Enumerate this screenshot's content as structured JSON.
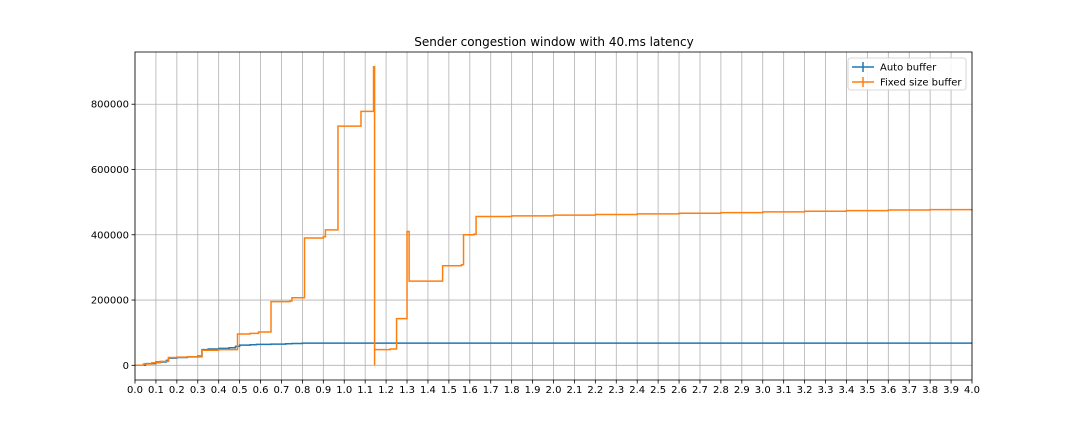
{
  "chart_data": {
    "type": "line",
    "title": "Sender congestion window with 40.ms latency",
    "xlabel": "",
    "ylabel": "",
    "xlim": [
      0.0,
      4.0
    ],
    "ylim": [
      -45000,
      960000
    ],
    "x_ticks": [
      0.0,
      0.1,
      0.2,
      0.3,
      0.4,
      0.5,
      0.6,
      0.7,
      0.8,
      0.9,
      1.0,
      1.1,
      1.2,
      1.3,
      1.4,
      1.5,
      1.6,
      1.7,
      1.8,
      1.9,
      2.0,
      2.1,
      2.2,
      2.3,
      2.4,
      2.5,
      2.6,
      2.7,
      2.8,
      2.9,
      3.0,
      3.1,
      3.2,
      3.3,
      3.4,
      3.5,
      3.6,
      3.7,
      3.8,
      3.9,
      4.0
    ],
    "x_tick_labels": [
      "0.0",
      "0.1",
      "0.2",
      "0.3",
      "0.4",
      "0.5",
      "0.6",
      "0.7",
      "0.8",
      "0.9",
      "1.0",
      "1.1",
      "1.2",
      "1.3",
      "1.4",
      "1.5",
      "1.6",
      "1.7",
      "1.8",
      "1.9",
      "2.0",
      "2.1",
      "2.2",
      "2.3",
      "2.4",
      "2.5",
      "2.6",
      "2.7",
      "2.8",
      "2.9",
      "3.0",
      "3.1",
      "3.2",
      "3.3",
      "3.4",
      "3.5",
      "3.6",
      "3.7",
      "3.8",
      "3.9",
      "4.0"
    ],
    "y_ticks": [
      0,
      200000,
      400000,
      600000,
      800000
    ],
    "y_tick_labels": [
      "0",
      "200000",
      "400000",
      "600000",
      "800000"
    ],
    "grid": true,
    "legend_position": "top-right",
    "series": [
      {
        "name": "Auto buffer",
        "color": "#1f77b4",
        "x": [
          0.0,
          0.05,
          0.1,
          0.15,
          0.16,
          0.2,
          0.25,
          0.3,
          0.32,
          0.35,
          0.4,
          0.45,
          0.48,
          0.5,
          0.55,
          0.58,
          0.65,
          0.72,
          0.75,
          0.8,
          1.0,
          1.5,
          2.0,
          2.5,
          3.0,
          3.5,
          4.0
        ],
        "y": [
          0,
          5000,
          10000,
          15000,
          22000,
          24000,
          26000,
          28000,
          48000,
          50000,
          52000,
          54000,
          58000,
          62000,
          63000,
          64000,
          65000,
          66000,
          67000,
          68000,
          68000,
          68000,
          68000,
          68000,
          68000,
          68000,
          68000
        ]
      },
      {
        "name": "Fixed size buffer",
        "color": "#ff7f0e",
        "x": [
          0.0,
          0.04,
          0.08,
          0.12,
          0.16,
          0.16,
          0.2,
          0.25,
          0.32,
          0.32,
          0.4,
          0.49,
          0.49,
          0.55,
          0.59,
          0.65,
          0.65,
          0.74,
          0.75,
          0.81,
          0.81,
          0.9,
          0.91,
          0.97,
          0.97,
          1.03,
          1.07,
          1.08,
          1.14,
          1.14,
          1.145,
          1.145,
          1.22,
          1.25,
          1.25,
          1.3,
          1.3,
          1.31,
          1.31,
          1.45,
          1.47,
          1.56,
          1.57,
          1.62,
          1.63,
          1.7,
          1.8,
          2.0,
          2.2,
          2.4,
          2.6,
          2.8,
          3.0,
          3.2,
          3.4,
          3.6,
          3.8,
          4.0
        ],
        "y": [
          0,
          4000,
          8000,
          12000,
          17000,
          24000,
          25000,
          26000,
          28000,
          46000,
          48000,
          50000,
          96000,
          98000,
          102000,
          105000,
          195000,
          197000,
          207000,
          210000,
          390000,
          394000,
          415000,
          418000,
          733000,
          733000,
          733000,
          778000,
          780000,
          915000,
          0,
          48000,
          50000,
          50000,
          143000,
          145000,
          410000,
          405000,
          258000,
          258000,
          305000,
          308000,
          400000,
          402000,
          456000,
          456000,
          458000,
          460000,
          462000,
          464000,
          466000,
          468000,
          470000,
          472000,
          474000,
          476000,
          477000,
          478000
        ]
      }
    ]
  }
}
